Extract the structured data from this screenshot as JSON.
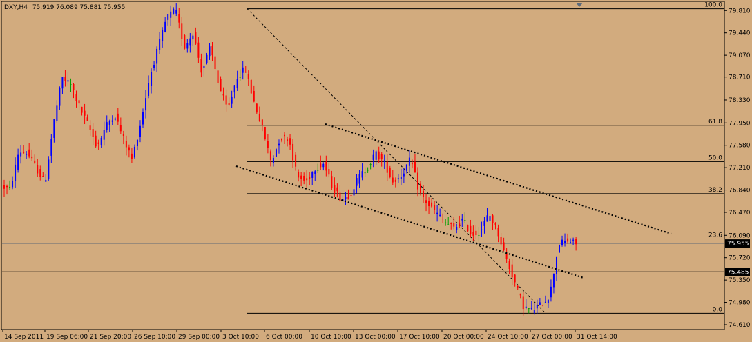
{
  "window": {
    "symbol": "DXY,H4",
    "ohlc": "75.919 76.089 75.881 75.955"
  },
  "colors": {
    "background": "#d2ab7e",
    "bull": "#0000ff",
    "bear": "#ff0000",
    "neutral": "#00a000",
    "grid": "#000000",
    "text": "#000000",
    "price_line": "#777777"
  },
  "chart_data": {
    "type": "candlestick",
    "ylim": [
      74.53,
      79.95
    ],
    "y_ticks": [
      "79.810",
      "79.440",
      "79.070",
      "78.710",
      "78.330",
      "77.950",
      "77.580",
      "77.210",
      "76.840",
      "76.470",
      "76.090",
      "75.720",
      "75.350",
      "74.980",
      "74.610"
    ],
    "x_ticks": [
      "14 Sep 2011",
      "19 Sep 06:00",
      "21 Sep 20:00",
      "26 Sep 10:00",
      "29 Sep 00:00",
      "3 Oct 10:00",
      "6 Oct 00:00",
      "10 Oct 10:00",
      "13 Oct 00:00",
      "17 Oct 10:00",
      "20 Oct 00:00",
      "24 Oct 10:00",
      "27 Oct 00:00",
      "31 Oct 14:00"
    ],
    "current_price": "75.955",
    "hline_price": "75.485",
    "fibonacci": [
      {
        "label": "100.0",
        "price": 79.84
      },
      {
        "label": "61.8",
        "price": 77.91
      },
      {
        "label": "50.0",
        "price": 77.31
      },
      {
        "label": "38.2",
        "price": 76.78
      },
      {
        "label": "23.6",
        "price": 76.03
      },
      {
        "label": "0.0",
        "price": 74.8
      }
    ],
    "key_prices": [
      76.9,
      76.85,
      77.48,
      77.45,
      77.2,
      76.95,
      77.95,
      78.7,
      78.58,
      78.2,
      77.9,
      77.55,
      77.9,
      78.1,
      77.7,
      77.35,
      77.95,
      78.7,
      79.2,
      79.7,
      79.82,
      79.2,
      79.45,
      78.8,
      79.2,
      78.55,
      78.15,
      78.7,
      78.85,
      78.3,
      77.85,
      77.3,
      77.7,
      77.7,
      77.05,
      76.98,
      77.2,
      77.28,
      76.9,
      76.7,
      76.75,
      77.05,
      77.2,
      77.45,
      77.28,
      76.97,
      77.1,
      77.35,
      76.8,
      76.6,
      76.45,
      76.3,
      76.2,
      76.35,
      76.1,
      76.15,
      76.45,
      76.15,
      75.7,
      75.3,
      74.9,
      74.85,
      74.95,
      75.1,
      75.95,
      76.0,
      75.955
    ]
  }
}
